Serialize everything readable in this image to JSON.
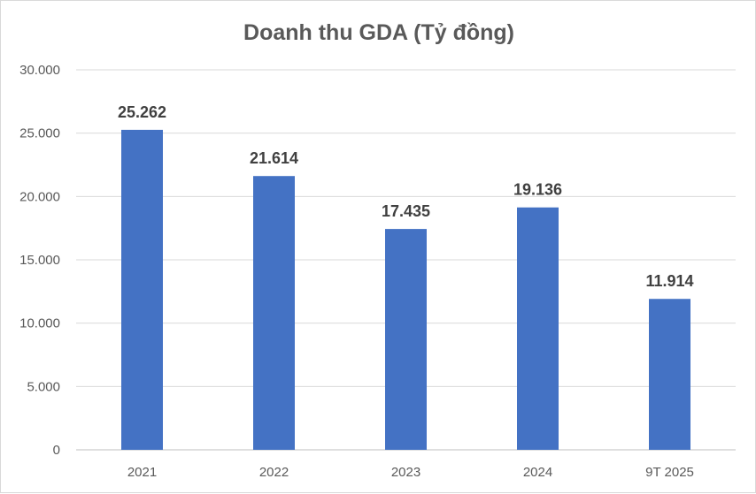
{
  "chart_data": {
    "type": "bar",
    "title": "Doanh thu GDA (Tỷ đồng)",
    "categories": [
      "2021",
      "2022",
      "2023",
      "2024",
      "9T 2025"
    ],
    "values": [
      25262,
      21614,
      17435,
      19136,
      11914
    ],
    "data_labels": [
      "25.262",
      "21.614",
      "17.435",
      "19.136",
      "11.914"
    ],
    "yticks": [
      0,
      5000,
      10000,
      15000,
      20000,
      25000,
      30000
    ],
    "ytick_labels": [
      "0",
      "5.000",
      "10.000",
      "15.000",
      "20.000",
      "25.000",
      "30.000"
    ],
    "ylim": [
      0,
      30000
    ],
    "xlabel": "",
    "ylabel": "",
    "grid": true,
    "legend": "none",
    "bar_color": "#4472c4"
  }
}
